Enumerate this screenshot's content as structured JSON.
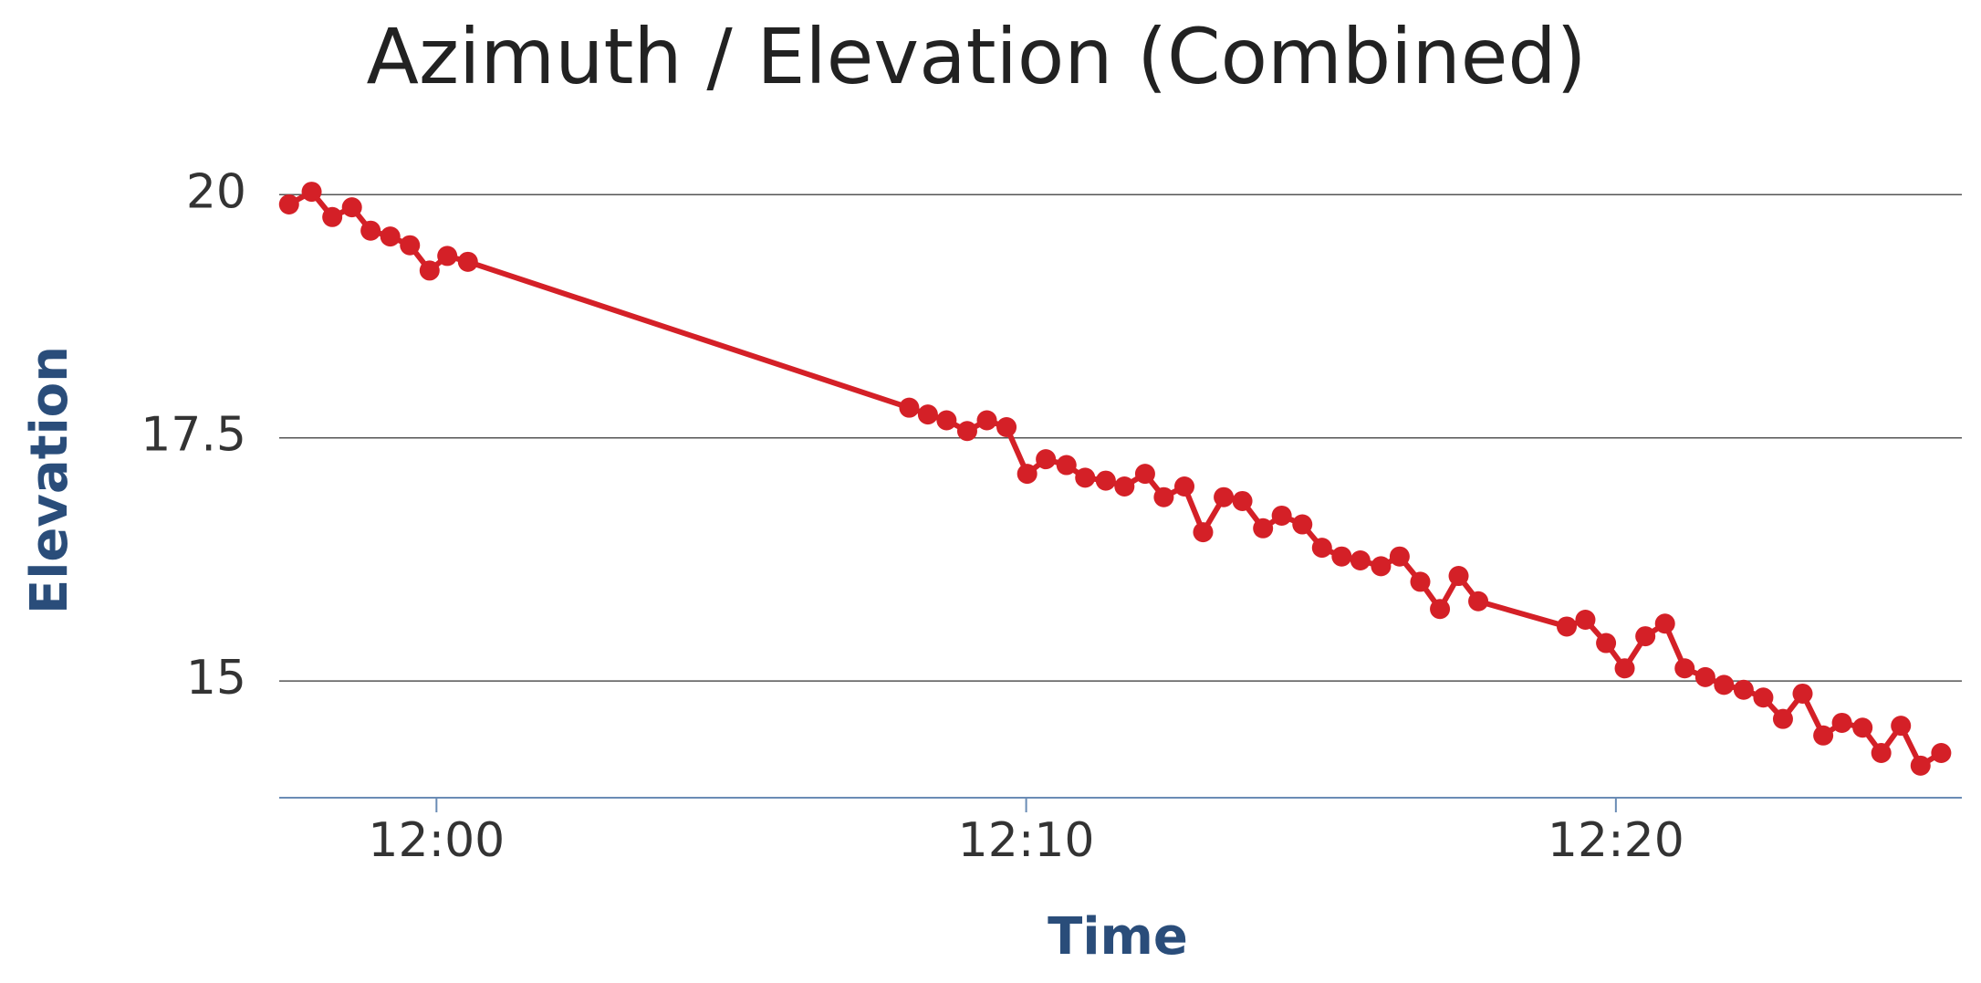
{
  "chart_data": {
    "type": "line",
    "title": "Azimuth / Elevation (Combined)",
    "x_label": "Time",
    "y_label": "Elevation",
    "color": "#d42027",
    "grid": true,
    "x": [
      "11:57:30",
      "11:57:53",
      "11:58:14",
      "11:58:34",
      "11:58:53",
      "11:59:13",
      "11:59:33",
      "11:59:53",
      "12:00:11",
      "12:00:32",
      "12:08:01",
      "12:08:20",
      "12:08:39",
      "12:09:00",
      "12:09:20",
      "12:09:40",
      "12:10:01",
      "12:10:20",
      "12:10:41",
      "12:11:00",
      "12:11:21",
      "12:11:40",
      "12:12:01",
      "12:12:20",
      "12:12:41",
      "12:13:00",
      "12:13:21",
      "12:13:40",
      "12:14:01",
      "12:14:20",
      "12:14:41",
      "12:15:01",
      "12:15:21",
      "12:15:40",
      "12:16:01",
      "12:16:20",
      "12:16:41",
      "12:17:01",
      "12:17:20",
      "12:17:40",
      "12:19:10",
      "12:19:29",
      "12:19:50",
      "12:20:09",
      "12:20:30",
      "12:20:50",
      "12:21:10",
      "12:21:31",
      "12:21:50",
      "12:22:10",
      "12:22:30",
      "12:22:50",
      "12:23:10",
      "12:23:31",
      "12:23:50",
      "12:24:11",
      "12:24:30",
      "12:24:50",
      "12:25:10",
      "12:25:31"
    ],
    "values": [
      19.9,
      20.03,
      19.77,
      19.87,
      19.63,
      19.57,
      19.48,
      19.22,
      19.37,
      19.31,
      17.81,
      17.74,
      17.68,
      17.57,
      17.68,
      17.61,
      17.13,
      17.28,
      17.22,
      17.09,
      17.06,
      17.0,
      17.13,
      16.89,
      17.0,
      16.53,
      16.89,
      16.85,
      16.57,
      16.7,
      16.61,
      16.37,
      16.28,
      16.24,
      16.18,
      16.28,
      16.02,
      15.74,
      16.08,
      15.82,
      15.56,
      15.63,
      15.39,
      15.13,
      15.46,
      15.59,
      15.13,
      15.04,
      14.96,
      14.91,
      14.83,
      14.61,
      14.87,
      14.44,
      14.57,
      14.52,
      14.26,
      14.54,
      14.13,
      14.26
    ],
    "xlim": [
      "11:57:20",
      "12:25:52"
    ],
    "xticks": [
      "12:00",
      "12:10",
      "12:20"
    ],
    "ylim": [
      13.8,
      20.5
    ],
    "yticks": [
      15,
      17.5,
      20
    ]
  }
}
